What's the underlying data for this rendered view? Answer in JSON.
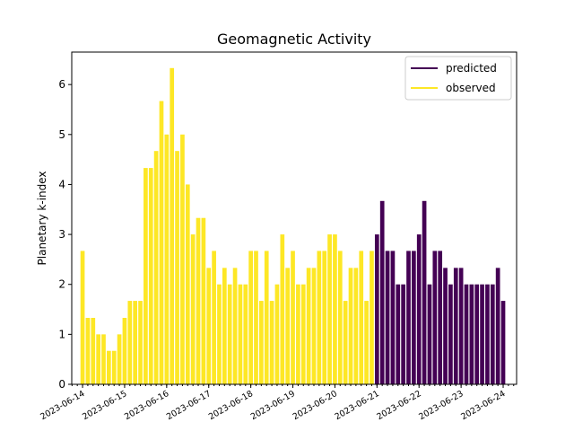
{
  "chart_data": {
    "type": "bar",
    "title": "Geomagnetic Activity",
    "xlabel": "",
    "ylabel": "Planetary k-index",
    "ylim": [
      0,
      6.65
    ],
    "yticks": [
      0,
      1,
      2,
      3,
      4,
      5,
      6
    ],
    "xlim": [
      "2023-06-13T17:50:00",
      "2023-06-24T07:40:00"
    ],
    "xticks": [
      "2023-06-14",
      "2023-06-15",
      "2023-06-16",
      "2023-06-17",
      "2023-06-18",
      "2023-06-19",
      "2023-06-20",
      "2023-06-21",
      "2023-06-22",
      "2023-06-23",
      "2023-06-24"
    ],
    "bar_interval_hours": 3,
    "grid": false,
    "legend_position": "top-right",
    "series": [
      {
        "name": "observed",
        "color": "#fde725",
        "start": "2023-06-14T00:00:00",
        "values": [
          2.67,
          1.33,
          1.33,
          1.0,
          1.0,
          0.67,
          0.67,
          1.0,
          1.33,
          1.67,
          1.67,
          1.67,
          4.33,
          4.33,
          4.67,
          5.67,
          5.0,
          6.33,
          4.67,
          5.0,
          4.0,
          3.0,
          3.33,
          3.33,
          2.33,
          2.67,
          2.0,
          2.33,
          2.0,
          2.33,
          2.0,
          2.0,
          2.67,
          2.67,
          1.67,
          2.67,
          1.67,
          2.0,
          3.0,
          2.33,
          2.67,
          2.0,
          2.0,
          2.33,
          2.33,
          2.67,
          2.67,
          3.0,
          3.0,
          2.67,
          1.67,
          2.33,
          2.33,
          2.67,
          1.67,
          2.67
        ]
      },
      {
        "name": "predicted",
        "color": "#440154",
        "start": "2023-06-21T00:00:00",
        "values": [
          3.0,
          3.67,
          2.67,
          2.67,
          2.0,
          2.0,
          2.67,
          2.67,
          3.0,
          3.67,
          2.0,
          2.67,
          2.67,
          2.33,
          2.0,
          2.33,
          2.33,
          2.0,
          2.0,
          2.0,
          2.0,
          2.0,
          2.0,
          2.33,
          1.67
        ]
      }
    ],
    "legend": [
      "predicted",
      "observed"
    ]
  }
}
